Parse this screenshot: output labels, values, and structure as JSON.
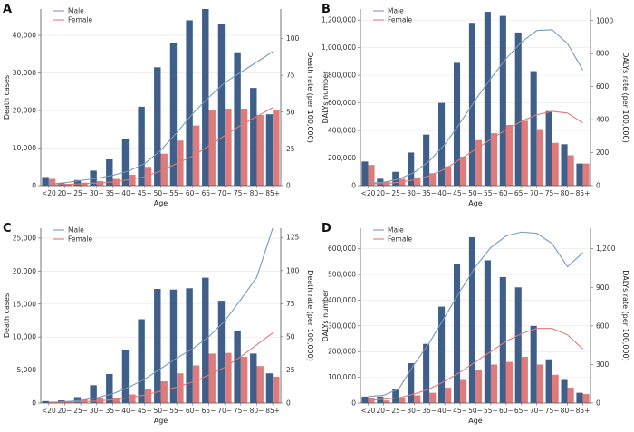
{
  "colors": {
    "male": "#3f5f88",
    "female": "#e07b7b",
    "male_line": "#7a9bb8",
    "female_line": "#e07b7b",
    "axis": "#555555",
    "grid": "#e6e6e6"
  },
  "chart_data": [
    {
      "panel": "A",
      "type": "bar+line",
      "xlabel": "Age",
      "ylabel": "Death cases",
      "y2label": "Death rate (per 100,000)",
      "categories": [
        "<20",
        "20~",
        "25~",
        "30~",
        "35~",
        "40~",
        "45~",
        "50~",
        "55~",
        "60~",
        "65~",
        "70~",
        "75~",
        "80~",
        "85+"
      ],
      "ylim": [
        0,
        47000
      ],
      "yticks": [
        0,
        10000,
        20000,
        30000,
        40000
      ],
      "yticklabels": [
        "0",
        "10,000",
        "20,000",
        "30,000",
        "40,000"
      ],
      "y2lim": [
        0,
        120
      ],
      "y2ticks": [
        0,
        25,
        50,
        75,
        100
      ],
      "y2ticklabels": [
        "0",
        "25",
        "50",
        "75",
        "100"
      ],
      "legend": [
        "Male",
        "Female"
      ],
      "series": [
        {
          "name": "Male",
          "kind": "bar",
          "values": [
            2300,
            600,
            1500,
            4000,
            7000,
            12500,
            21000,
            31500,
            38000,
            44000,
            47000,
            43000,
            35500,
            26000,
            19000
          ]
        },
        {
          "name": "Female",
          "kind": "bar",
          "values": [
            1800,
            500,
            800,
            1200,
            1800,
            2900,
            5000,
            8500,
            12000,
            16000,
            20000,
            20500,
            20500,
            18800,
            20000
          ]
        },
        {
          "name": "Male",
          "kind": "line",
          "axis": "right",
          "values": [
            1,
            2,
            3.5,
            5,
            7,
            10,
            15,
            24,
            36,
            49,
            60,
            70,
            77,
            84,
            91
          ]
        },
        {
          "name": "Female",
          "kind": "line",
          "axis": "right",
          "values": [
            0.5,
            0.8,
            1.2,
            1.8,
            2.5,
            4,
            6,
            10,
            15,
            20,
            27,
            34,
            41,
            47,
            53
          ]
        }
      ]
    },
    {
      "panel": "B",
      "type": "bar+line",
      "xlabel": "Age",
      "ylabel": "DALYs number",
      "y2label": "DALYs rate (per 100,000)",
      "categories": [
        "<20",
        "20~",
        "25~",
        "30~",
        "35~",
        "40~",
        "45~",
        "50~",
        "55~",
        "60~",
        "65~",
        "70~",
        "75~",
        "80~",
        "85+"
      ],
      "ylim": [
        0,
        1280000
      ],
      "yticks": [
        0,
        200000,
        400000,
        600000,
        800000,
        1000000,
        1200000
      ],
      "yticklabels": [
        "0",
        "200,000",
        "400,000",
        "600,000",
        "800,000",
        "1,000,000",
        "1,200,000"
      ],
      "y2lim": [
        0,
        1070
      ],
      "y2ticks": [
        0,
        200,
        400,
        600,
        800,
        1000
      ],
      "y2ticklabels": [
        "0",
        "200",
        "400",
        "600",
        "800",
        "1000"
      ],
      "legend": [
        "Male",
        "Female"
      ],
      "series": [
        {
          "name": "Male",
          "kind": "bar",
          "values": [
            175000,
            50000,
            100000,
            240000,
            370000,
            600000,
            890000,
            1180000,
            1260000,
            1230000,
            1110000,
            830000,
            540000,
            300000,
            160000
          ]
        },
        {
          "name": "Female",
          "kind": "bar",
          "values": [
            150000,
            30000,
            50000,
            60000,
            90000,
            140000,
            210000,
            330000,
            380000,
            440000,
            470000,
            410000,
            310000,
            220000,
            160000
          ]
        },
        {
          "name": "Male",
          "kind": "line",
          "axis": "right",
          "values": [
            15,
            20,
            40,
            80,
            150,
            250,
            380,
            520,
            650,
            770,
            870,
            940,
            945,
            860,
            700
          ]
        },
        {
          "name": "Female",
          "kind": "line",
          "axis": "right",
          "values": [
            10,
            12,
            20,
            35,
            60,
            100,
            160,
            220,
            280,
            340,
            390,
            430,
            450,
            440,
            380
          ]
        }
      ]
    },
    {
      "panel": "C",
      "type": "bar+line",
      "xlabel": "Age",
      "ylabel": "Death cases",
      "y2label": "Death rate (per 100,000)",
      "categories": [
        "<20",
        "20~",
        "25~",
        "30~",
        "35~",
        "40~",
        "45~",
        "50~",
        "55~",
        "60~",
        "65~",
        "70~",
        "75~",
        "80~",
        "85+"
      ],
      "ylim": [
        0,
        26500
      ],
      "yticks": [
        0,
        5000,
        10000,
        15000,
        20000,
        25000
      ],
      "yticklabels": [
        "0",
        "5,000",
        "10,000",
        "15,000",
        "20,000",
        "25,000"
      ],
      "y2lim": [
        0,
        132
      ],
      "y2ticks": [
        0,
        25,
        50,
        75,
        100,
        125
      ],
      "y2ticklabels": [
        "0",
        "25",
        "50",
        "75",
        "100",
        "125"
      ],
      "legend": [
        "Male",
        "Female"
      ],
      "series": [
        {
          "name": "Male",
          "kind": "bar",
          "values": [
            300,
            400,
            900,
            2700,
            4400,
            8000,
            12700,
            17300,
            17200,
            17400,
            19000,
            15500,
            11000,
            7500,
            4500
          ]
        },
        {
          "name": "Female",
          "kind": "bar",
          "values": [
            200,
            300,
            500,
            700,
            800,
            1300,
            2200,
            3300,
            4500,
            5700,
            7500,
            7600,
            7000,
            5600,
            4000
          ]
        },
        {
          "name": "Male",
          "kind": "line",
          "axis": "right",
          "values": [
            0.5,
            1,
            2,
            4,
            7,
            12,
            18,
            26,
            34,
            41,
            50,
            62,
            78,
            95,
            132
          ]
        },
        {
          "name": "Female",
          "kind": "line",
          "axis": "right",
          "values": [
            0.3,
            0.5,
            1,
            1.5,
            2.5,
            4,
            6,
            9,
            12,
            16,
            21,
            27,
            35,
            44,
            53
          ]
        }
      ]
    },
    {
      "panel": "D",
      "type": "bar+line",
      "xlabel": "Age",
      "ylabel": "DALYs number",
      "y2label": "DALYs rate (per 100,000)",
      "categories": [
        "<20",
        "20~",
        "25~",
        "30~",
        "35~",
        "40~",
        "45~",
        "50~",
        "55~",
        "60~",
        "65~",
        "70~",
        "75~",
        "80~",
        "85+"
      ],
      "ylim": [
        0,
        680000
      ],
      "yticks": [
        0,
        100000,
        200000,
        300000,
        400000,
        500000,
        600000
      ],
      "yticklabels": [
        "0",
        "100,000",
        "200,000",
        "300,000",
        "400,000",
        "500,000",
        "600,000"
      ],
      "y2lim": [
        0,
        1360
      ],
      "y2ticks": [
        0,
        300,
        600,
        900,
        1200
      ],
      "y2ticklabels": [
        "0",
        "300",
        "600",
        "900",
        "1,200"
      ],
      "legend": [
        "Male",
        "Female"
      ],
      "series": [
        {
          "name": "Male",
          "kind": "bar",
          "values": [
            25000,
            25000,
            55000,
            155000,
            230000,
            375000,
            540000,
            645000,
            555000,
            490000,
            450000,
            300000,
            170000,
            90000,
            40000
          ]
        },
        {
          "name": "Female",
          "kind": "bar",
          "values": [
            20000,
            10000,
            20000,
            30000,
            40000,
            60000,
            90000,
            130000,
            150000,
            160000,
            180000,
            150000,
            110000,
            60000,
            35000
          ]
        },
        {
          "name": "Male",
          "kind": "line",
          "axis": "right",
          "values": [
            50,
            60,
            110,
            300,
            470,
            670,
            870,
            1060,
            1210,
            1300,
            1330,
            1320,
            1240,
            1060,
            1170
          ]
        },
        {
          "name": "Female",
          "kind": "line",
          "axis": "right",
          "values": [
            20,
            30,
            40,
            70,
            110,
            170,
            240,
            320,
            400,
            480,
            540,
            580,
            580,
            530,
            420
          ]
        }
      ]
    }
  ]
}
